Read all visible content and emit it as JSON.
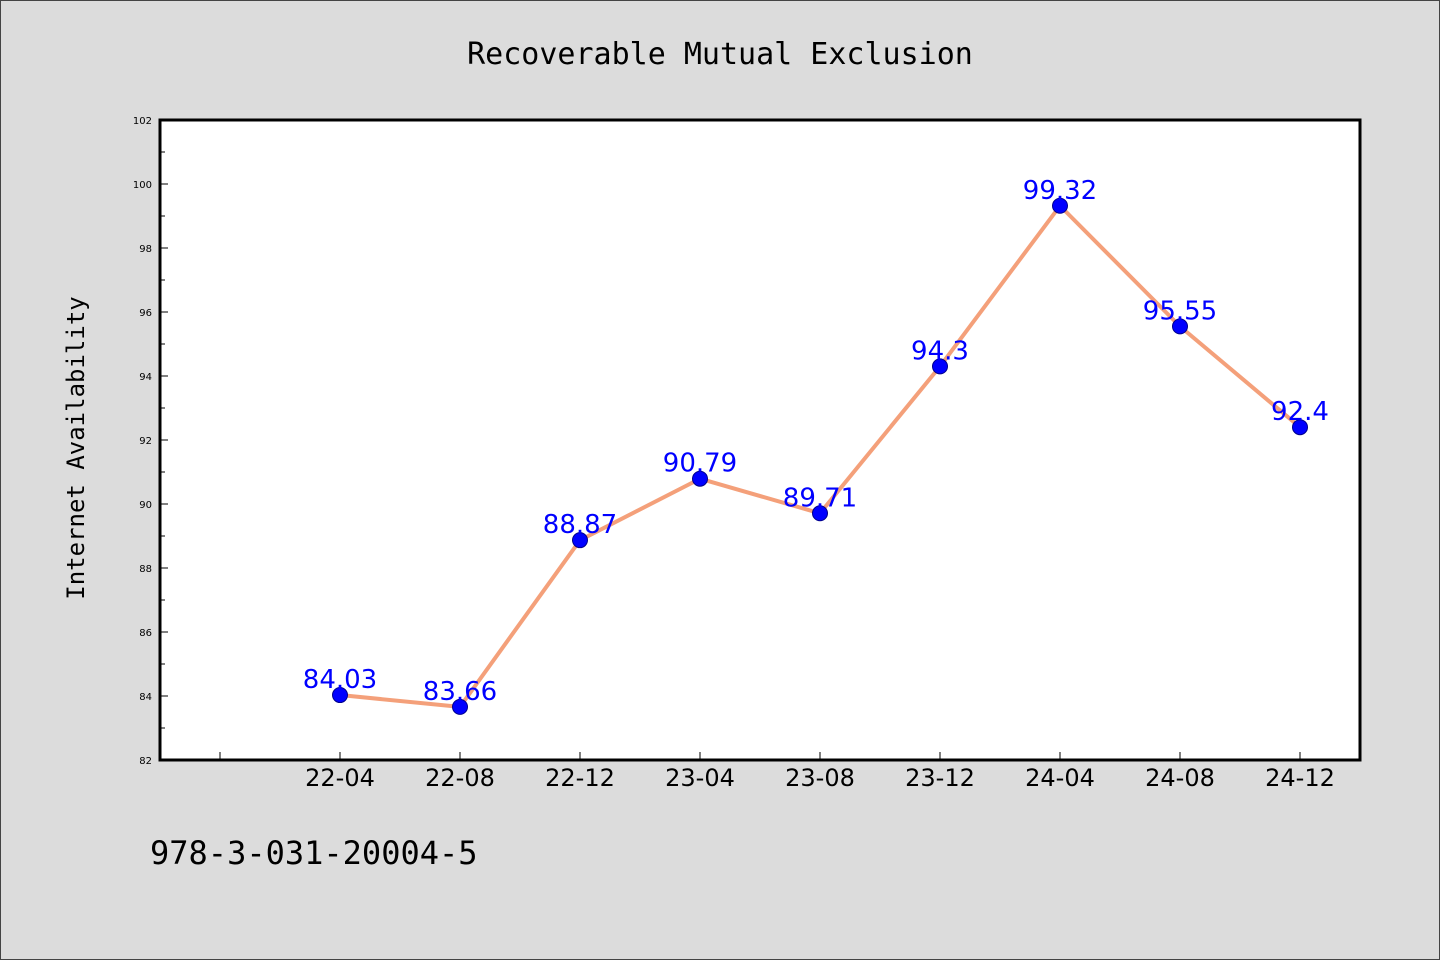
{
  "chart_data": {
    "type": "line",
    "title": "Recoverable Mutual Exclusion",
    "ylabel": "Internet Availability",
    "xlabel": "",
    "categories": [
      "22-04",
      "22-08",
      "22-12",
      "23-04",
      "23-08",
      "23-12",
      "24-04",
      "24-08",
      "24-12"
    ],
    "series": [
      {
        "values": [
          84.03,
          83.66,
          88.87,
          90.79,
          89.71,
          94.3,
          99.32,
          95.55,
          92.4
        ]
      }
    ],
    "data_labels": [
      "84.03",
      "83.66",
      "88.87",
      "90.79",
      "89.71",
      "94.3",
      "99.32",
      "95.55",
      "92.4"
    ],
    "ylim": [
      82,
      102
    ],
    "yticks": [
      82,
      84,
      86,
      88,
      90,
      92,
      94,
      96,
      98,
      100,
      102
    ],
    "grid": false,
    "legend": "none",
    "colors": {
      "line": "#f4a07a",
      "marker": "#0000ff",
      "marker_edge": "#00008b",
      "label": "#0000ff",
      "background": "#dcdcdc",
      "plot_background": "#ffffff"
    }
  },
  "footer": {
    "text": "978-3-031-20004-5"
  }
}
